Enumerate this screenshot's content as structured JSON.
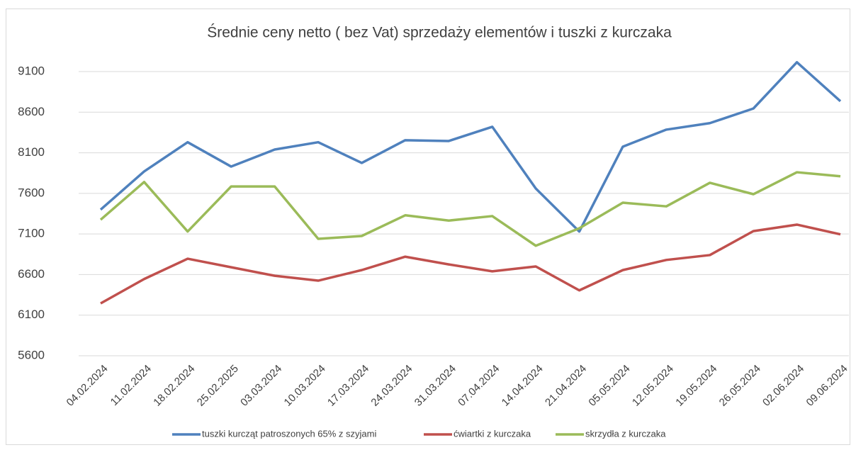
{
  "chart_data": {
    "type": "line",
    "title": "Średnie ceny netto ( bez Vat) sprzedaży elementów i tuszki z kurczaka",
    "categories": [
      "04.02.2024",
      "11.02.2024",
      "18.02.2024",
      "25.02.2025",
      "03.03.2024",
      "10.03.2024",
      "17.03.2024",
      "24.03.2024",
      "31.03.2024",
      "07.04.2024",
      "14.04.2024",
      "21.04.2024",
      "05.05.2024",
      "12.05.2024",
      "19.05.2024",
      "26.05.2024",
      "02.06.2024",
      "09.06.2024"
    ],
    "series": [
      {
        "name": "tuszki kurcząt patroszonych 65% z szyjami",
        "color": "#4f81bd",
        "values": [
          7400,
          7870,
          8230,
          7930,
          8140,
          8230,
          7975,
          8255,
          8245,
          8420,
          7660,
          7130,
          8175,
          8385,
          8465,
          8645,
          9215,
          8735
        ]
      },
      {
        "name": "ćwiartki z kurczaka",
        "color": "#c0504d",
        "values": [
          6245,
          6545,
          6795,
          6690,
          6585,
          6525,
          6655,
          6820,
          6725,
          6640,
          6700,
          6405,
          6655,
          6780,
          6840,
          7135,
          7215,
          7095
        ]
      },
      {
        "name": "skrzydła z kurczaka",
        "color": "#9bbb59",
        "values": [
          7275,
          7740,
          7130,
          7685,
          7685,
          7040,
          7075,
          7330,
          7265,
          7320,
          6955,
          7170,
          7485,
          7440,
          7730,
          7590,
          7860,
          7810
        ]
      }
    ],
    "ylim": [
      5600,
      9600
    ],
    "yticks": [
      5600,
      6100,
      6600,
      7100,
      7600,
      8100,
      8600,
      9100
    ],
    "grid": true
  }
}
